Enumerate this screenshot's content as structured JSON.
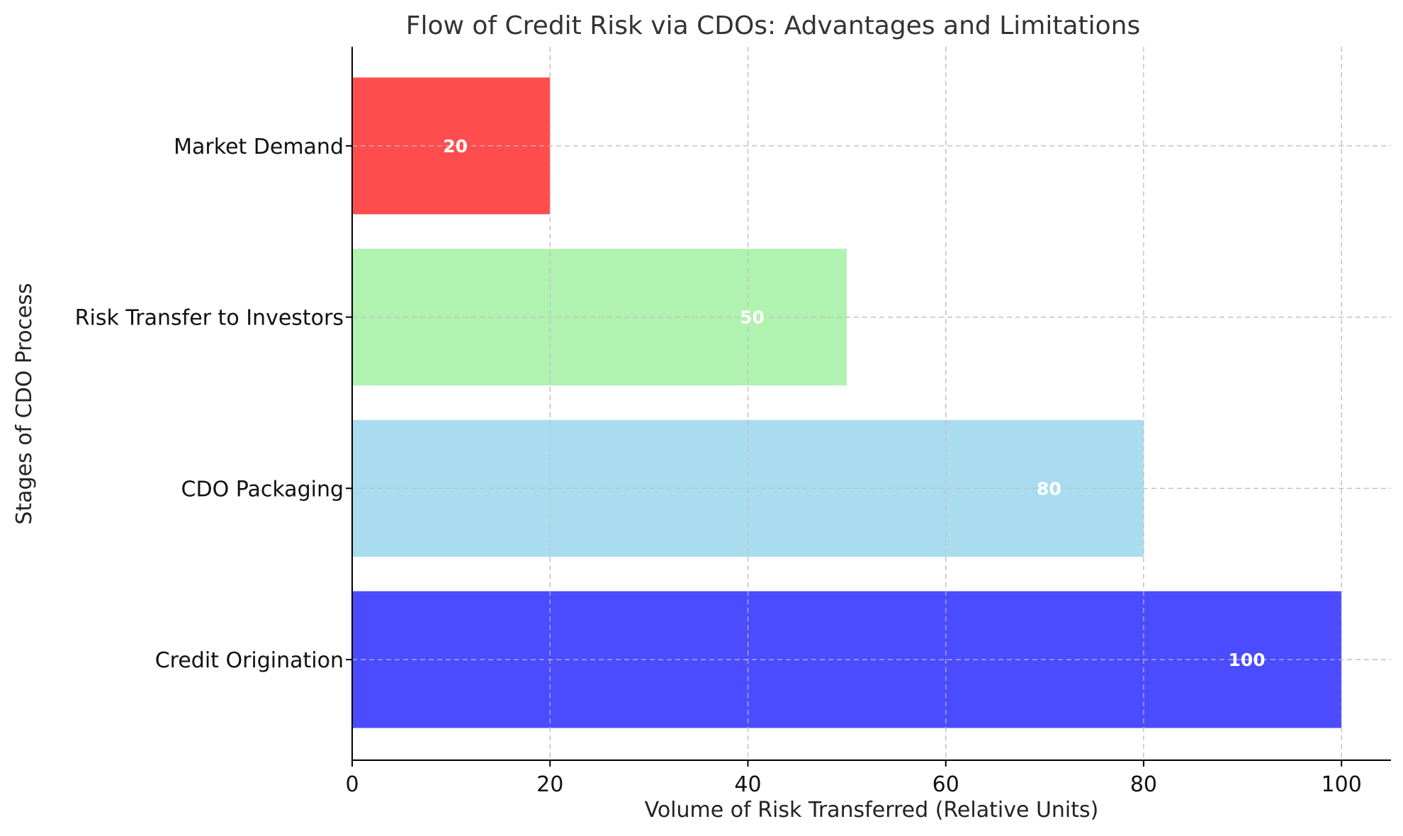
{
  "chart_data": {
    "type": "bar",
    "orientation": "horizontal",
    "title": "Flow of Credit Risk via CDOs: Advantages and Limitations",
    "xlabel": "Volume of Risk Transferred (Relative Units)",
    "ylabel": "Stages of CDO Process",
    "categories": [
      "Credit Origination",
      "CDO Packaging",
      "Risk Transfer to Investors",
      "Market Demand"
    ],
    "values": [
      100,
      80,
      50,
      20
    ],
    "colors": [
      "#4b4bff",
      "#a9dcee",
      "#b0f2b0",
      "#ff4d4d"
    ],
    "data_labels": [
      "100",
      "80",
      "50",
      "20"
    ],
    "xlim": [
      0,
      105
    ],
    "xticks": [
      0,
      20,
      40,
      60,
      80,
      100
    ],
    "xtick_labels": [
      "0",
      "20",
      "40",
      "60",
      "80",
      "100"
    ],
    "grid": true,
    "legend": "none"
  }
}
